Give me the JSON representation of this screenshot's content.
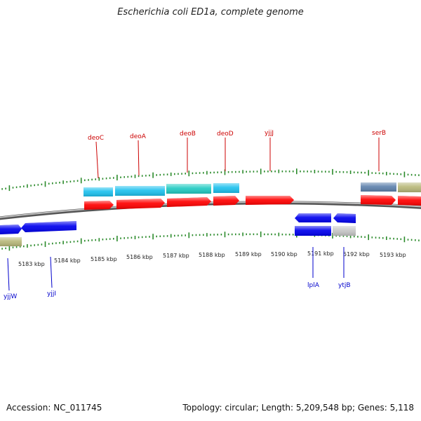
{
  "title": "Escherichia coli ED1a, complete genome",
  "footer": {
    "accession": "Accession: NC_011745",
    "summary": "Topology: circular; Length: 5,209,548 bp; Genes: 5,118"
  },
  "colors": {
    "cds": "#ff0000",
    "gene_forward": "#1ec1ee",
    "gene_teal": "#22cbc3",
    "gene_reverse": "#0000ee",
    "gene_steel": "#5f82ad",
    "gene_olive": "#b8b87a",
    "gene_gray": "#c6c6c6",
    "backbone": "#8c8c8c",
    "gc_ticks": "#2a8a2a",
    "label_forward": "#cc0000",
    "label_reverse": "#0000cc"
  },
  "scale_labels": [
    "5183 kbp",
    "5184 kbp",
    "5185 kbp",
    "5186 kbp",
    "5187 kbp",
    "5188 kbp",
    "5189 kbp",
    "5190 kbp",
    "5191 kbp",
    "5192 kbp",
    "5193 kbp"
  ],
  "forward_labels": [
    "deoC",
    "deoA",
    "deoB",
    "deoD",
    "yjjJ",
    "serB"
  ],
  "reverse_labels": [
    "yjjW",
    "yjjI",
    "lplA",
    "ytjB"
  ]
}
